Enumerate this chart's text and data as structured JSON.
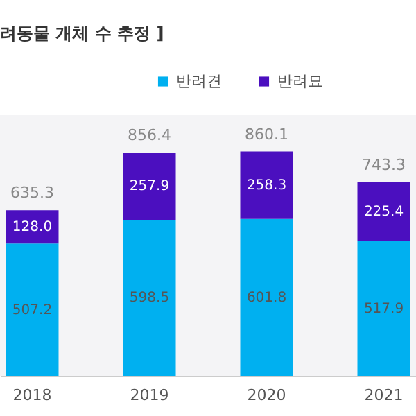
{
  "chart_data": {
    "type": "bar",
    "title": "려동물 개체 수 추정 ]",
    "categories": [
      "2018",
      "2019",
      "2020",
      "2021"
    ],
    "series": [
      {
        "name": "반려견",
        "color": "#00b0f0",
        "values": [
          507.2,
          598.5,
          601.8,
          517.9
        ],
        "value_labels": [
          "507.2",
          "598.5",
          "601.8",
          "517.9"
        ]
      },
      {
        "name": "반려묘",
        "color": "#4b0fbf",
        "values": [
          128.0,
          257.9,
          258.3,
          225.4
        ],
        "value_labels": [
          "128.0",
          "257.9",
          "258.3",
          "225.4"
        ]
      }
    ],
    "stacked": true,
    "totals": [
      "635.3",
      "856.4",
      "860.1",
      "743.3"
    ],
    "ylim": [
      0,
      1000
    ],
    "tick_labels": "x",
    "grid": false,
    "legend": "top"
  }
}
